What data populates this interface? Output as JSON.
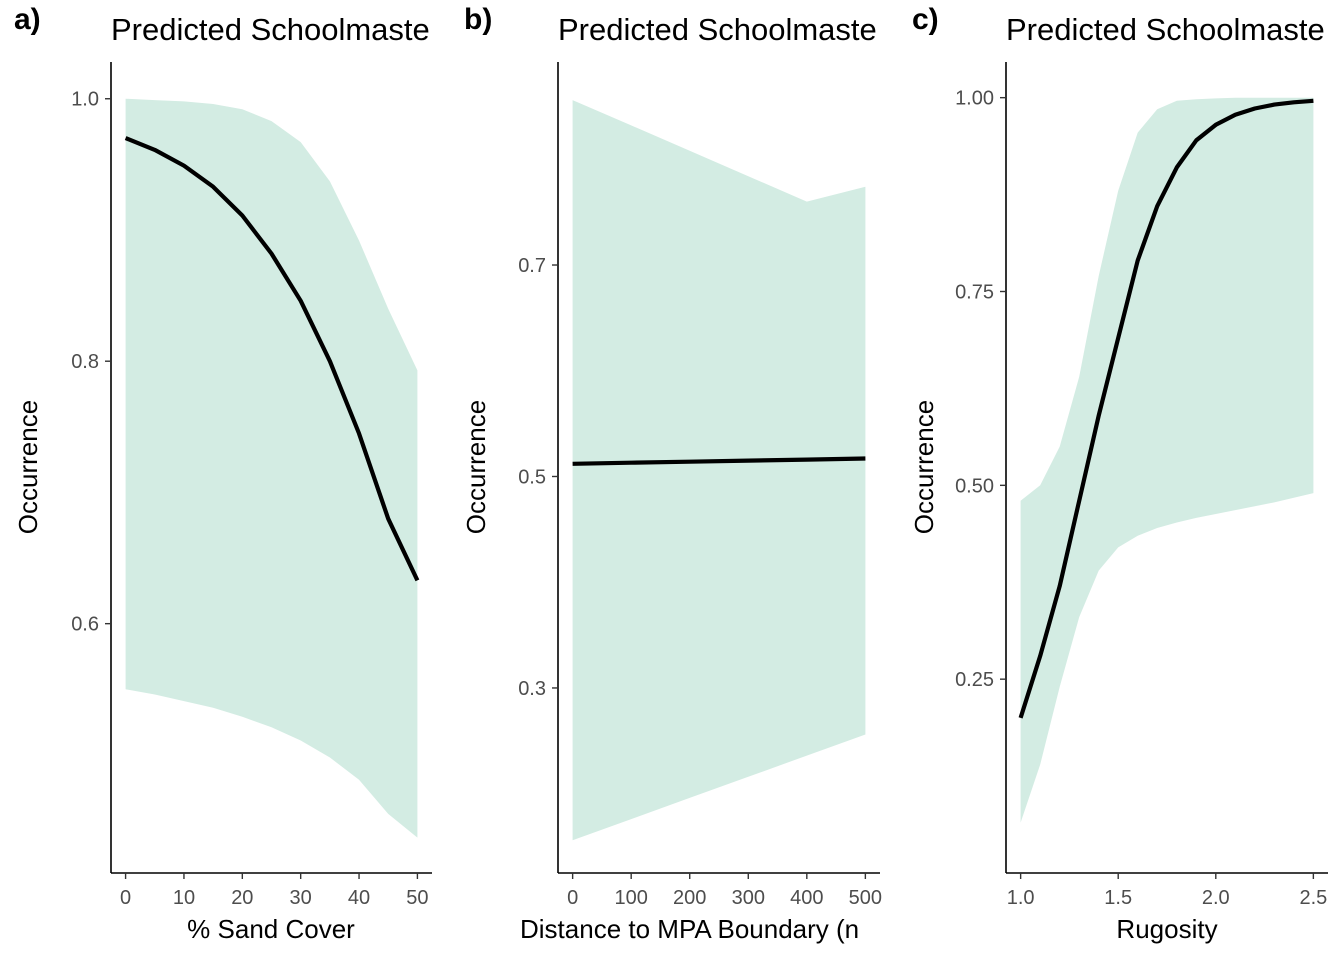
{
  "chart_data": [
    {
      "type": "line",
      "panel_label": "a)",
      "title": "Predicted Schoolmaste",
      "xlabel": "% Sand Cover",
      "ylabel": "Occurrence",
      "xlim": [
        -2.5,
        52.5
      ],
      "ylim": [
        0.41,
        1.028
      ],
      "xticks": [
        0,
        10,
        20,
        30,
        40,
        50
      ],
      "xtick_labels": [
        "0",
        "10",
        "20",
        "30",
        "40",
        "50"
      ],
      "yticks": [
        0.6,
        0.8,
        1.0
      ],
      "ytick_labels": [
        "0.6",
        "0.8",
        "1.0"
      ],
      "grid": false,
      "x": [
        0,
        5,
        10,
        15,
        20,
        25,
        30,
        35,
        40,
        45,
        50
      ],
      "series": [
        {
          "values": [
            0.97,
            0.961,
            0.949,
            0.933,
            0.911,
            0.882,
            0.846,
            0.8,
            0.745,
            0.68,
            0.633
          ]
        }
      ],
      "ribbon_lower": [
        0.55,
        0.546,
        0.541,
        0.536,
        0.529,
        0.521,
        0.511,
        0.498,
        0.481,
        0.455,
        0.437
      ],
      "ribbon_upper": [
        1.0,
        0.999,
        0.998,
        0.996,
        0.992,
        0.983,
        0.967,
        0.937,
        0.892,
        0.84,
        0.793
      ],
      "colors": {
        "ribbon": "#d3ece3",
        "line": "#000000"
      }
    },
    {
      "type": "line",
      "panel_label": "b)",
      "title": "Predicted Schoolmaste",
      "xlabel": "Distance to MPA Boundary (n",
      "ylabel": "Occurrence",
      "xlim": [
        -25,
        525
      ],
      "ylim": [
        0.125,
        0.892
      ],
      "xticks": [
        0,
        100,
        200,
        300,
        400,
        500
      ],
      "xtick_labels": [
        "0",
        "100",
        "200",
        "300",
        "400",
        "500"
      ],
      "yticks": [
        0.3,
        0.5,
        0.7
      ],
      "ytick_labels": [
        "0.3",
        "0.5",
        "0.7"
      ],
      "grid": false,
      "x": [
        0,
        100,
        200,
        300,
        400,
        500
      ],
      "series": [
        {
          "values": [
            0.512,
            0.513,
            0.514,
            0.515,
            0.516,
            0.517
          ]
        }
      ],
      "ribbon_lower": [
        0.156,
        0.176,
        0.196,
        0.216,
        0.236,
        0.256
      ],
      "ribbon_upper": [
        0.856,
        0.832,
        0.808,
        0.784,
        0.76,
        0.774
      ],
      "colors": {
        "ribbon": "#d3ece3",
        "line": "#000000"
      }
    },
    {
      "type": "line",
      "panel_label": "c)",
      "title": "Predicted Schoolmaste",
      "xlabel": "Rugosity",
      "ylabel": "Occurrence",
      "xlim": [
        0.925,
        2.575
      ],
      "ylim": [
        0.0,
        1.046
      ],
      "xticks": [
        1.0,
        1.5,
        2.0,
        2.5
      ],
      "xtick_labels": [
        "1.0",
        "1.5",
        "2.0",
        "2.5"
      ],
      "yticks": [
        0.25,
        0.5,
        0.75,
        1.0
      ],
      "ytick_labels": [
        "0.25",
        "0.50",
        "0.75",
        "1.00"
      ],
      "grid": false,
      "x": [
        1.0,
        1.1,
        1.2,
        1.3,
        1.4,
        1.5,
        1.6,
        1.7,
        1.8,
        1.9,
        2.0,
        2.1,
        2.2,
        2.3,
        2.4,
        2.5
      ],
      "series": [
        {
          "values": [
            0.2,
            0.28,
            0.37,
            0.48,
            0.59,
            0.69,
            0.79,
            0.86,
            0.91,
            0.945,
            0.965,
            0.978,
            0.986,
            0.991,
            0.994,
            0.996
          ]
        }
      ],
      "ribbon_lower": [
        0.065,
        0.14,
        0.24,
        0.33,
        0.39,
        0.42,
        0.435,
        0.445,
        0.452,
        0.458,
        0.463,
        0.468,
        0.473,
        0.478,
        0.484,
        0.49
      ],
      "ribbon_upper": [
        0.48,
        0.5,
        0.55,
        0.64,
        0.77,
        0.88,
        0.955,
        0.985,
        0.996,
        0.998,
        0.999,
        1.0,
        1.0,
        1.0,
        1.0,
        1.0
      ],
      "colors": {
        "ribbon": "#d3ece3",
        "line": "#000000"
      }
    }
  ]
}
